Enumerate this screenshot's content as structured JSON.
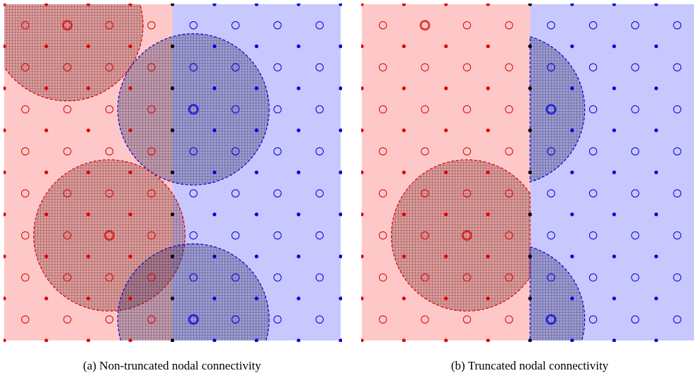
{
  "captions": {
    "a": "(a)  Non-truncated nodal connectivity",
    "b": "(b)  Truncated nodal connectivity"
  },
  "colors": {
    "left_region": "#ffc8c8",
    "right_region": "#c8c8ff",
    "red": "#e00000",
    "blue": "#0000dd",
    "interface_node": "#000000",
    "hatch": "#3a2a2a"
  },
  "diagram": {
    "grid_columns": 8,
    "grid_rows": 8,
    "interface_column": 4,
    "circle_radius_cells": 1.8,
    "supports": [
      {
        "region": "left",
        "center_col": 1.5,
        "center_row": 0.5
      },
      {
        "region": "right",
        "center_col": 4.5,
        "center_row": 2.5
      },
      {
        "region": "left",
        "center_col": 2.5,
        "center_row": 5.5
      },
      {
        "region": "right",
        "center_col": 4.5,
        "center_row": 7.5
      }
    ]
  }
}
